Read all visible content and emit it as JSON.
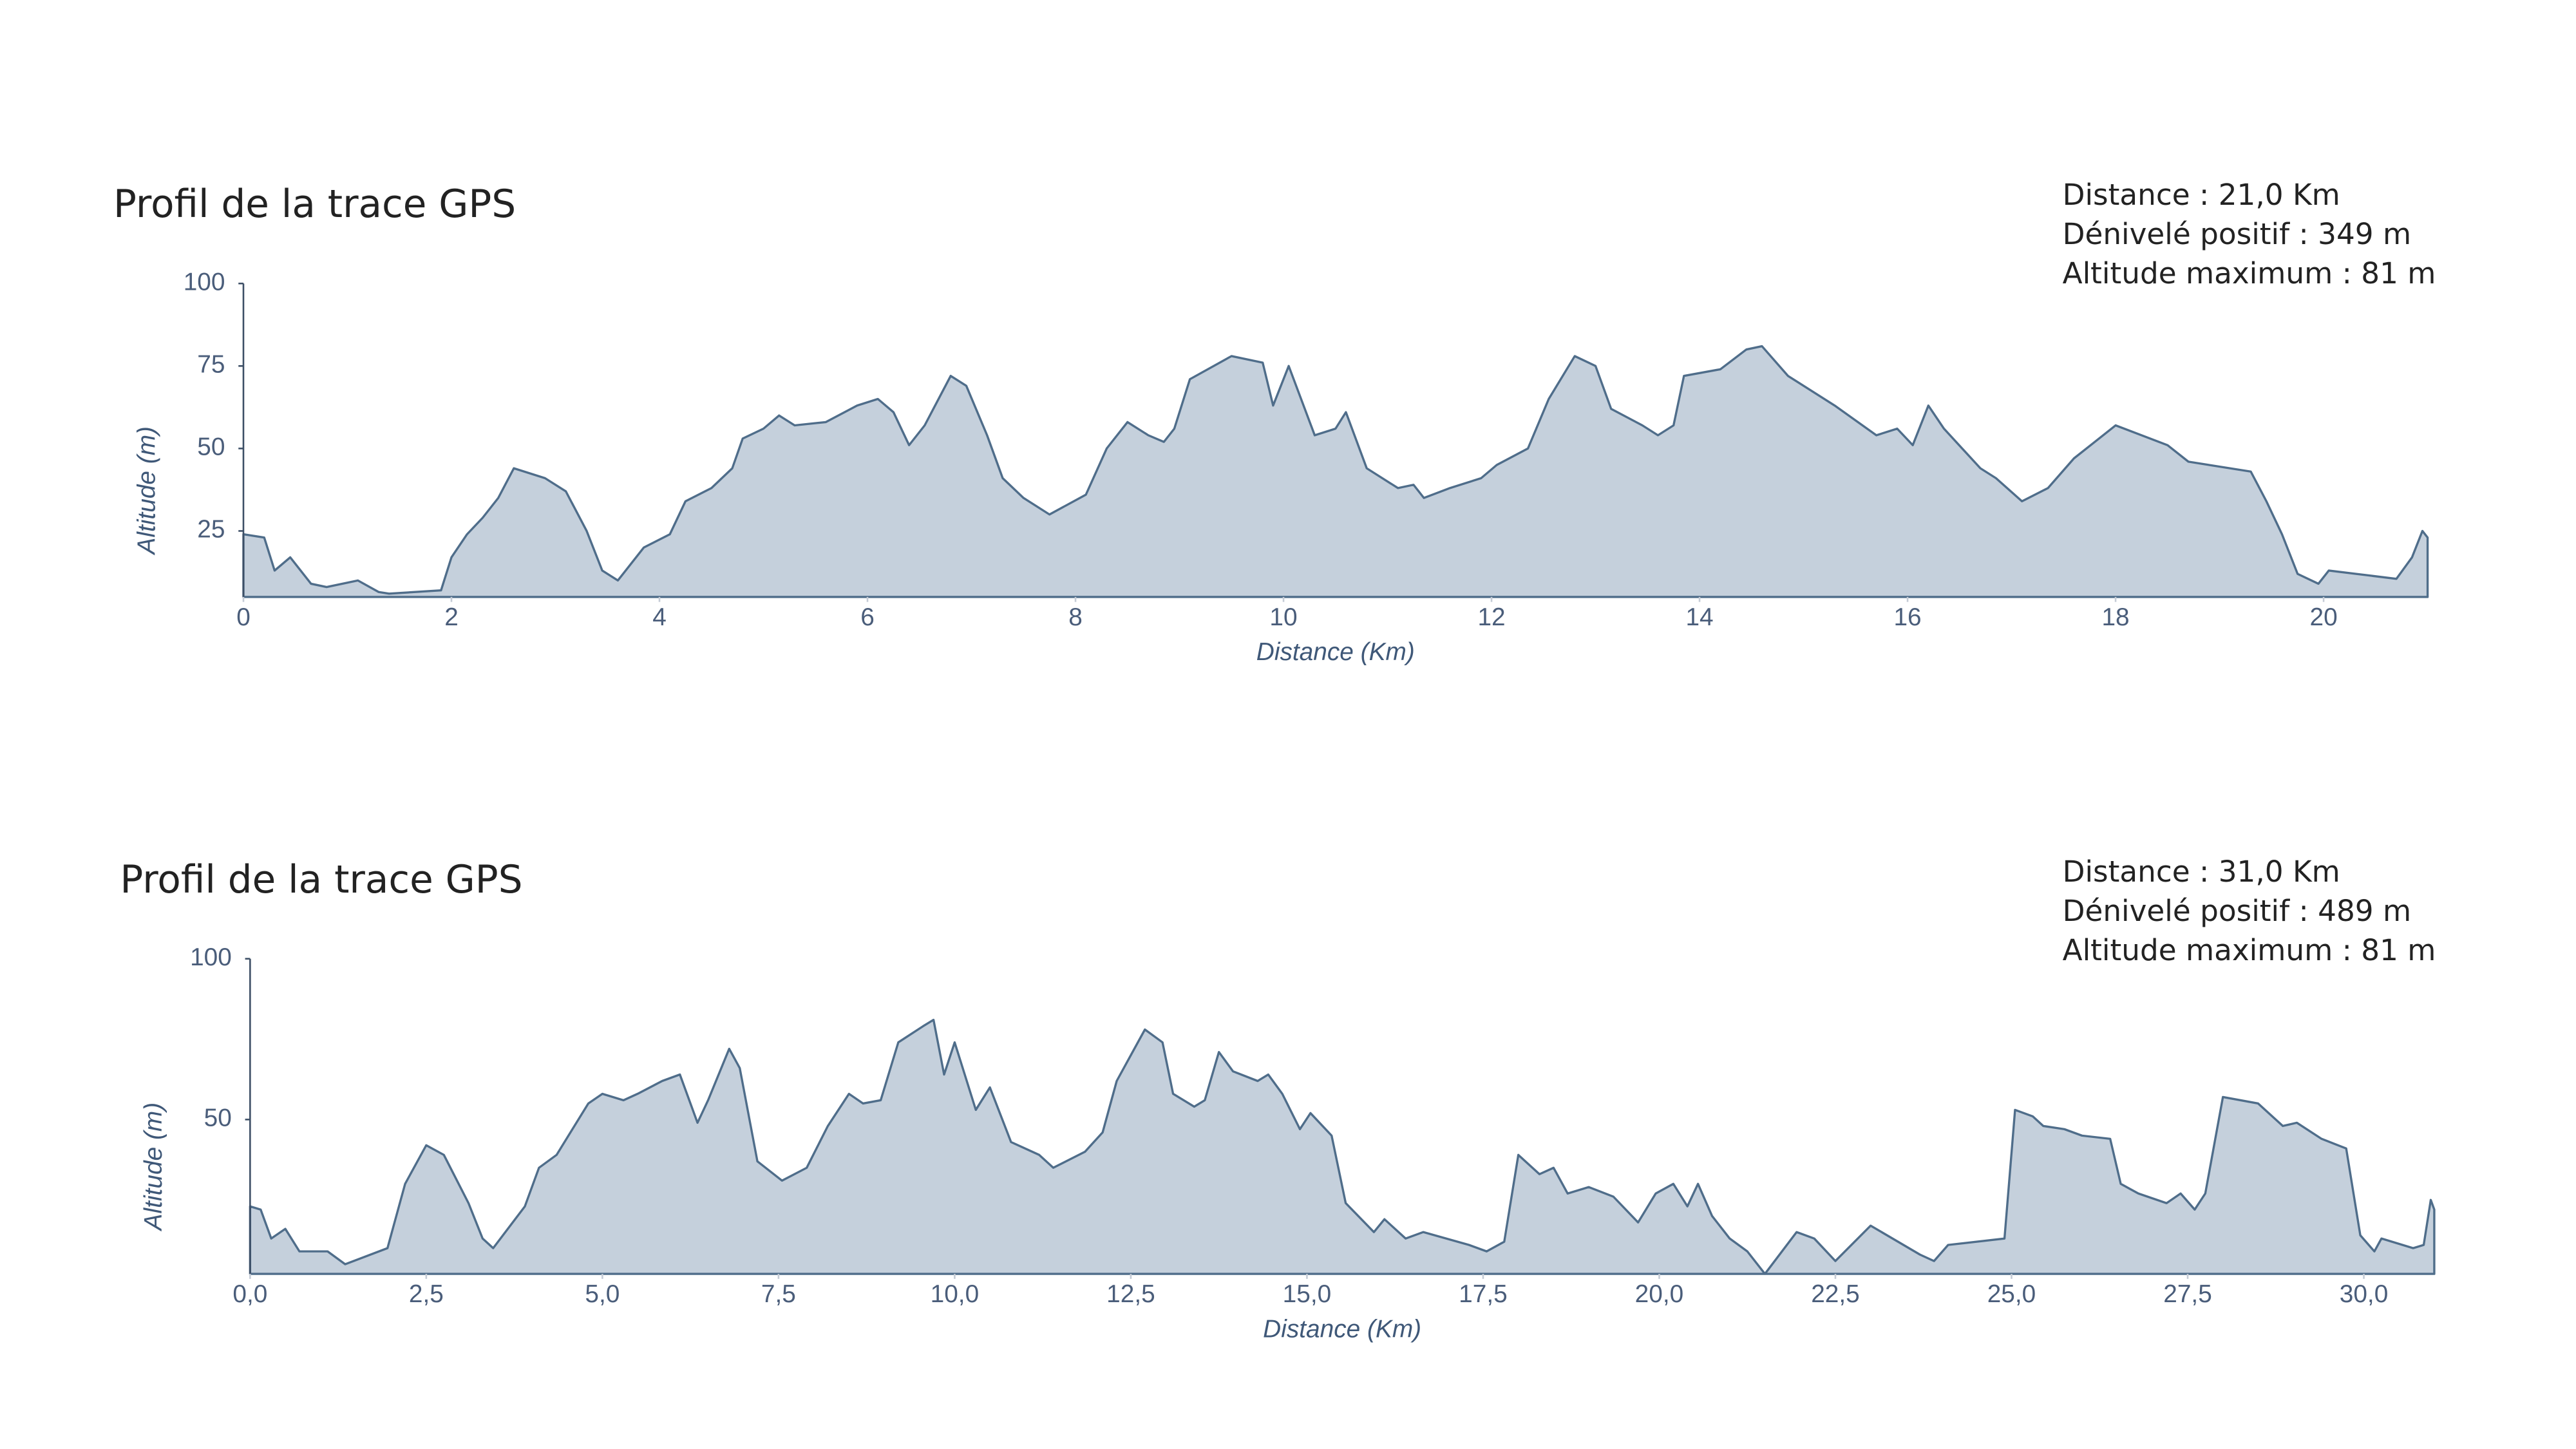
{
  "chart_data": [
    {
      "type": "area",
      "title": "Profil de la trace GPS",
      "stats": [
        "Distance : 21,0 Km",
        "Dénivelé positif : 349 m",
        "Altitude maximum : 81 m"
      ],
      "x_label": "Distance (Km)",
      "y_label": "Altitude (m)",
      "color": "#c5d0dc",
      "line_color": "#4f6d8a",
      "xlim": [
        0,
        21
      ],
      "ylim": [
        5,
        100
      ],
      "xticks": [
        0,
        2,
        4,
        6,
        8,
        10,
        12,
        14,
        16,
        18,
        20
      ],
      "yticks": [
        25,
        50,
        75,
        100
      ],
      "x": [
        0,
        0.2,
        0.3,
        0.45,
        0.55,
        0.65,
        0.8,
        1.1,
        1.3,
        1.4,
        1.9,
        2.0,
        2.15,
        2.3,
        2.45,
        2.6,
        2.9,
        3.1,
        3.3,
        3.45,
        3.6,
        3.85,
        4.1,
        4.25,
        4.5,
        4.7,
        4.8,
        5.0,
        5.15,
        5.3,
        5.6,
        5.9,
        6.1,
        6.25,
        6.4,
        6.55,
        6.8,
        6.95,
        7.15,
        7.3,
        7.5,
        7.75,
        8.1,
        8.3,
        8.5,
        8.7,
        8.85,
        8.95,
        9.1,
        9.5,
        9.8,
        9.9,
        10.05,
        10.3,
        10.5,
        10.6,
        10.8,
        11.1,
        11.25,
        11.35,
        11.6,
        11.9,
        12.05,
        12.35,
        12.55,
        12.8,
        13.0,
        13.15,
        13.45,
        13.6,
        13.75,
        13.85,
        14.2,
        14.45,
        14.6,
        14.85,
        15.3,
        15.7,
        15.9,
        16.05,
        16.2,
        16.35,
        16.7,
        16.85,
        17.1,
        17.35,
        17.6,
        17.8,
        18.0,
        18.5,
        18.7,
        19.3,
        19.45,
        19.6,
        19.75,
        19.95,
        20.05,
        20.7,
        20.85,
        20.95,
        21.0
      ],
      "values": [
        24,
        23,
        13,
        17,
        13,
        9,
        8,
        10,
        6.5,
        6,
        7,
        17,
        24,
        29,
        35,
        44,
        41,
        37,
        25,
        13,
        10,
        20,
        24,
        34,
        38,
        44,
        53,
        56,
        60,
        57,
        58,
        63,
        65,
        61,
        51,
        57,
        72,
        69,
        54,
        41,
        35,
        30,
        36,
        50,
        58,
        54,
        52,
        56,
        71,
        78,
        76,
        63,
        75,
        54,
        56,
        61,
        44,
        38,
        39,
        35,
        38,
        41,
        45,
        50,
        65,
        78,
        75,
        62,
        57,
        54,
        57,
        72,
        74,
        80,
        81,
        72,
        63,
        54,
        56,
        51,
        63,
        56,
        44,
        41,
        34,
        38,
        47,
        52,
        57,
        51,
        46,
        43,
        34,
        24,
        12,
        9,
        13,
        10.5,
        17,
        25,
        23
      ]
    },
    {
      "type": "area",
      "title": "Profil de la trace GPS",
      "stats": [
        "Distance : 31,0 Km",
        "Dénivelé positif : 489 m",
        "Altitude maximum : 81 m"
      ],
      "x_label": "Distance (Km)",
      "y_label": "Altitude (m)",
      "color": "#c5d0dc",
      "line_color": "#4f6d8a",
      "xlim": [
        0,
        31
      ],
      "ylim": [
        2,
        100
      ],
      "xticks": [
        {
          "value": 0,
          "label": "0,0"
        },
        {
          "value": 2.5,
          "label": "2,5"
        },
        {
          "value": 5,
          "label": "5,0"
        },
        {
          "value": 7.5,
          "label": "7,5"
        },
        {
          "value": 10,
          "label": "10,0"
        },
        {
          "value": 12.5,
          "label": "12,5"
        },
        {
          "value": 15,
          "label": "15,0"
        },
        {
          "value": 17.5,
          "label": "17,5"
        },
        {
          "value": 20,
          "label": "20,0"
        },
        {
          "value": 22.5,
          "label": "22,5"
        },
        {
          "value": 25,
          "label": "25,0"
        },
        {
          "value": 27.5,
          "label": "27,5"
        },
        {
          "value": 30,
          "label": "30,0"
        }
      ],
      "yticks": [
        50,
        100
      ],
      "x": [
        0,
        0.15,
        0.3,
        0.5,
        0.7,
        1.1,
        1.35,
        1.95,
        2.2,
        2.5,
        2.75,
        3.1,
        3.3,
        3.45,
        3.9,
        4.1,
        4.35,
        4.8,
        5.0,
        5.3,
        5.5,
        5.85,
        6.1,
        6.35,
        6.5,
        6.8,
        6.95,
        7.2,
        7.55,
        7.9,
        8.2,
        8.5,
        8.7,
        8.95,
        9.2,
        9.55,
        9.7,
        9.85,
        10.0,
        10.3,
        10.5,
        10.8,
        11.2,
        11.4,
        11.85,
        12.1,
        12.3,
        12.7,
        12.95,
        13.1,
        13.4,
        13.55,
        13.75,
        13.95,
        14.3,
        14.45,
        14.65,
        14.9,
        15.05,
        15.35,
        15.55,
        15.95,
        16.1,
        16.4,
        16.65,
        17.3,
        17.55,
        17.8,
        18.0,
        18.3,
        18.5,
        18.7,
        19.0,
        19.35,
        19.7,
        19.95,
        20.2,
        20.4,
        20.55,
        20.75,
        21.0,
        21.25,
        21.5,
        21.95,
        22.2,
        22.5,
        23.0,
        23.7,
        23.9,
        24.1,
        24.9,
        25.05,
        25.3,
        25.45,
        25.75,
        26.0,
        26.4,
        26.55,
        26.8,
        27.2,
        27.4,
        27.6,
        27.75,
        28.0,
        28.5,
        28.85,
        29.05,
        29.4,
        29.75,
        29.95,
        30.15,
        30.25,
        30.7,
        30.85,
        30.95,
        31.0
      ],
      "values": [
        23,
        22,
        13,
        16,
        9,
        9,
        5,
        10,
        30,
        42,
        39,
        24,
        13,
        10,
        23,
        35,
        39,
        55,
        58,
        56,
        58,
        62,
        64,
        49,
        56,
        72,
        66,
        37,
        31,
        35,
        48,
        58,
        55,
        56,
        74,
        79,
        81,
        64,
        74,
        53,
        60,
        43,
        39,
        35,
        40,
        46,
        62,
        78,
        74,
        58,
        54,
        56,
        71,
        65,
        62,
        64,
        58,
        47,
        52,
        45,
        24,
        15,
        19,
        13,
        15,
        11,
        9,
        12,
        39,
        33,
        35,
        27,
        29,
        26,
        18,
        27,
        30,
        23,
        30,
        20,
        13,
        9,
        2,
        15,
        13,
        6,
        17,
        8,
        6,
        11,
        13,
        53,
        51,
        48,
        47,
        45,
        44,
        30,
        27,
        24,
        27,
        22,
        27,
        57,
        55,
        48,
        49,
        44,
        41,
        14,
        9,
        13,
        10,
        11,
        25,
        22
      ]
    }
  ]
}
